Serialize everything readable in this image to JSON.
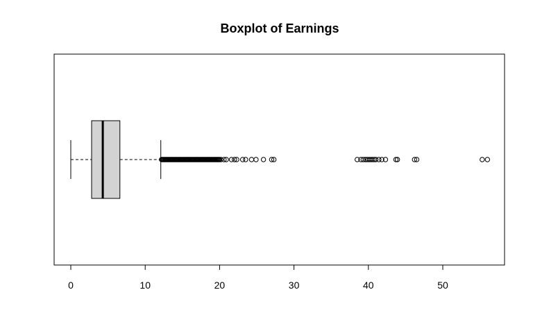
{
  "chart_data": {
    "type": "boxplot",
    "orientation": "horizontal",
    "title": "Boxplot of Earnings",
    "xlabel": "",
    "ylabel": "",
    "xlim": [
      0,
      56
    ],
    "x_ticks": [
      0,
      10,
      20,
      30,
      40,
      50
    ],
    "grid": false,
    "box": {
      "whisker_low": 0,
      "q1": 2.8,
      "median": 4.3,
      "q3": 6.6,
      "whisker_high": 12.1,
      "fill_color": "#d3d3d3"
    },
    "outliers": [
      12.2,
      12.3,
      12.4,
      12.5,
      12.6,
      12.7,
      12.8,
      12.9,
      13.0,
      13.1,
      13.2,
      13.3,
      13.4,
      13.5,
      13.6,
      13.7,
      13.8,
      13.9,
      14.0,
      14.1,
      14.2,
      14.3,
      14.4,
      14.5,
      14.6,
      14.7,
      14.8,
      14.9,
      15.0,
      15.1,
      15.2,
      15.3,
      15.4,
      15.5,
      15.6,
      15.7,
      15.8,
      15.9,
      16.0,
      16.1,
      16.2,
      16.3,
      16.4,
      16.5,
      16.6,
      16.7,
      16.8,
      16.9,
      17.0,
      17.1,
      17.2,
      17.3,
      17.4,
      17.5,
      17.6,
      17.7,
      17.8,
      17.9,
      18.0,
      18.1,
      18.2,
      18.3,
      18.4,
      18.5,
      18.6,
      18.7,
      18.8,
      18.9,
      19.0,
      19.1,
      19.2,
      19.3,
      19.4,
      19.5,
      19.6,
      19.7,
      19.8,
      19.9,
      20.0,
      20.2,
      20.6,
      20.9,
      21.6,
      22.0,
      22.3,
      23.1,
      23.5,
      24.3,
      24.9,
      25.9,
      27.0,
      27.3,
      38.5,
      39.0,
      39.3,
      39.6,
      39.8,
      40.0,
      40.2,
      40.4,
      40.6,
      40.8,
      41.0,
      41.4,
      41.8,
      42.3,
      43.7,
      43.9,
      46.2,
      46.5,
      55.3,
      56.0
    ]
  }
}
